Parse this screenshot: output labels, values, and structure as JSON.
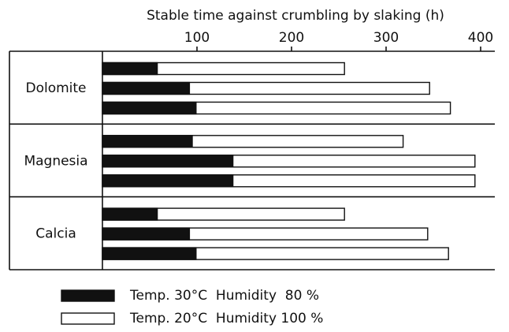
{
  "chart_data": {
    "type": "bar",
    "orientation": "horizontal",
    "title": "Stable time against crumbling by slaking (h)",
    "categories": [
      null,
      "Dolomite",
      null,
      null,
      "Magnesia",
      null,
      null,
      "Calcia",
      null
    ],
    "series": [
      {
        "name": "Temp. 30°C  Humidity  80 %",
        "color": "#111111",
        "values": [
          58,
          92,
          99,
          95,
          138,
          138,
          58,
          92,
          99
        ]
      },
      {
        "name": "Temp. 20°C  Humidity 100 %",
        "color": "#ffffff",
        "values": [
          256,
          346,
          368,
          318,
          394,
          394,
          256,
          344,
          366
        ]
      }
    ],
    "xlim": [
      0,
      415
    ],
    "xticks": [
      100,
      200,
      300,
      400
    ]
  }
}
